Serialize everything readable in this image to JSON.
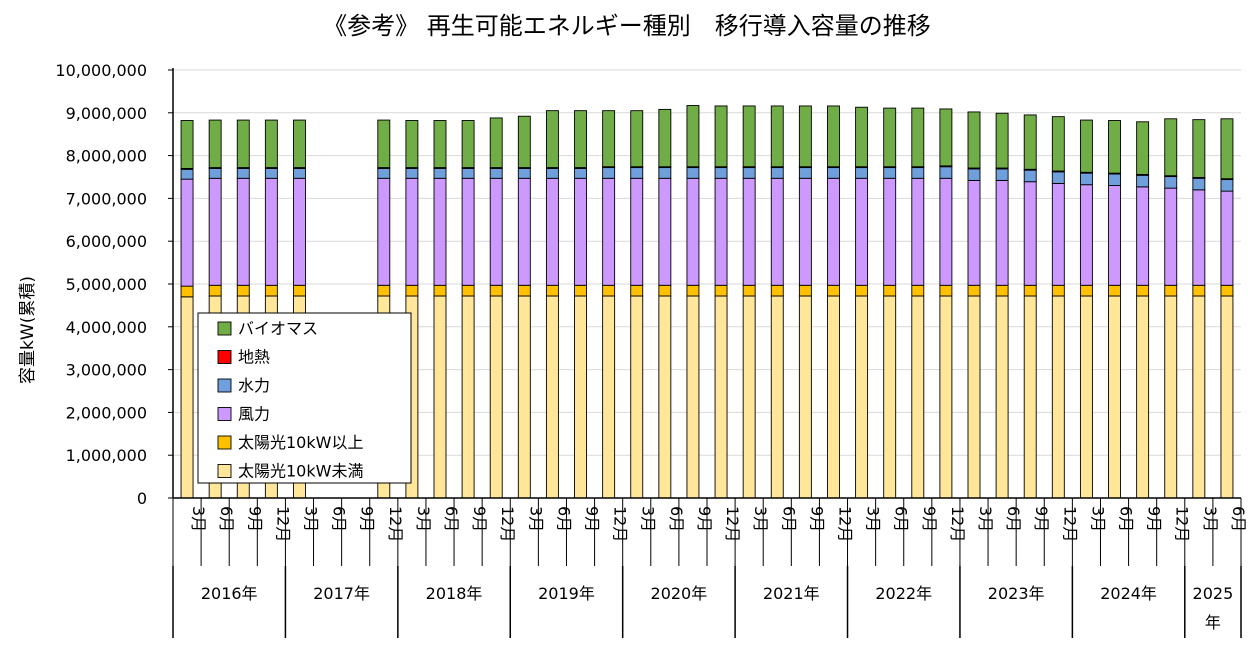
{
  "chart_data": {
    "type": "bar",
    "stacked": true,
    "title": "《参考》 再生可能エネルギー種別　移行導入容量の推移",
    "ylabel": "容量kW(累積)",
    "xlabel": "",
    "ylim": [
      0,
      10000000
    ],
    "y_ticks": [
      "0",
      "1,000,000",
      "2,000,000",
      "3,000,000",
      "4,000,000",
      "5,000,000",
      "6,000,000",
      "7,000,000",
      "8,000,000",
      "9,000,000",
      "10,000,000"
    ],
    "grid": true,
    "legend_position": "bottom-left",
    "categories": [
      "3月",
      "6月",
      "9月",
      "12月",
      "3月",
      "6月",
      "9月",
      "12月",
      "3月",
      "6月",
      "9月",
      "12月",
      "3月",
      "6月",
      "9月",
      "12月",
      "3月",
      "6月",
      "9月",
      "12月",
      "3月",
      "6月",
      "9月",
      "12月",
      "3月",
      "6月",
      "9月",
      "12月",
      "3月",
      "6月",
      "9月",
      "12月",
      "3月",
      "6月",
      "9月",
      "12月",
      "3月",
      "6月"
    ],
    "years": [
      {
        "label": "2016年",
        "count": 4
      },
      {
        "label": "2017年",
        "count": 4
      },
      {
        "label": "2018年",
        "count": 4
      },
      {
        "label": "2019年",
        "count": 4
      },
      {
        "label": "2020年",
        "count": 4
      },
      {
        "label": "2021年",
        "count": 4
      },
      {
        "label": "2022年",
        "count": 4
      },
      {
        "label": "2023年",
        "count": 4
      },
      {
        "label": "2024年",
        "count": 4
      },
      {
        "label": "2025年",
        "count": 2
      }
    ],
    "series": [
      {
        "name": "太陽光10kW未満",
        "color": "#FFE699",
        "values": [
          4700000,
          4720000,
          4720000,
          4720000,
          4720000,
          null,
          null,
          4720000,
          4720000,
          4720000,
          4720000,
          4720000,
          4720000,
          4720000,
          4720000,
          4720000,
          4720000,
          4720000,
          4720000,
          4720000,
          4720000,
          4720000,
          4720000,
          4720000,
          4720000,
          4720000,
          4720000,
          4720000,
          4720000,
          4720000,
          4720000,
          4720000,
          4720000,
          4720000,
          4720000,
          4720000,
          4720000,
          4720000
        ]
      },
      {
        "name": "太陽光10kW以上",
        "color": "#FFC000",
        "values": [
          250000,
          250000,
          250000,
          250000,
          250000,
          null,
          null,
          250000,
          250000,
          250000,
          250000,
          250000,
          250000,
          250000,
          250000,
          250000,
          250000,
          250000,
          250000,
          250000,
          250000,
          250000,
          250000,
          250000,
          250000,
          250000,
          250000,
          250000,
          250000,
          250000,
          250000,
          250000,
          250000,
          250000,
          250000,
          250000,
          250000,
          250000
        ]
      },
      {
        "name": "風力",
        "color": "#CC99FF",
        "values": [
          2500000,
          2500000,
          2500000,
          2500000,
          2500000,
          null,
          null,
          2500000,
          2500000,
          2500000,
          2500000,
          2500000,
          2500000,
          2500000,
          2500000,
          2500000,
          2500000,
          2500000,
          2500000,
          2500000,
          2500000,
          2500000,
          2500000,
          2500000,
          2500000,
          2500000,
          2500000,
          2500000,
          2450000,
          2450000,
          2420000,
          2380000,
          2350000,
          2330000,
          2300000,
          2270000,
          2230000,
          2200000
        ]
      },
      {
        "name": "水力",
        "color": "#6FA0DC",
        "values": [
          230000,
          230000,
          230000,
          230000,
          230000,
          null,
          null,
          230000,
          230000,
          230000,
          230000,
          230000,
          230000,
          230000,
          230000,
          250000,
          250000,
          250000,
          250000,
          250000,
          250000,
          250000,
          250000,
          250000,
          250000,
          250000,
          250000,
          270000,
          270000,
          270000,
          270000,
          270000,
          270000,
          270000,
          270000,
          270000,
          270000,
          270000
        ]
      },
      {
        "name": "地熱",
        "color": "#FF0000",
        "values": [
          20000,
          20000,
          20000,
          20000,
          20000,
          null,
          null,
          20000,
          20000,
          20000,
          20000,
          20000,
          20000,
          20000,
          20000,
          20000,
          20000,
          20000,
          20000,
          20000,
          20000,
          20000,
          20000,
          20000,
          20000,
          20000,
          20000,
          20000,
          20000,
          20000,
          20000,
          20000,
          20000,
          20000,
          20000,
          20000,
          20000,
          20000
        ]
      },
      {
        "name": "バイオマス",
        "color": "#70AD47",
        "values": [
          1120000,
          1110000,
          1110000,
          1110000,
          1110000,
          null,
          null,
          1110000,
          1100000,
          1100000,
          1100000,
          1160000,
          1200000,
          1330000,
          1330000,
          1310000,
          1310000,
          1340000,
          1430000,
          1420000,
          1420000,
          1420000,
          1420000,
          1420000,
          1390000,
          1370000,
          1370000,
          1330000,
          1310000,
          1280000,
          1270000,
          1270000,
          1220000,
          1230000,
          1230000,
          1330000,
          1350000,
          1400000
        ]
      }
    ]
  }
}
